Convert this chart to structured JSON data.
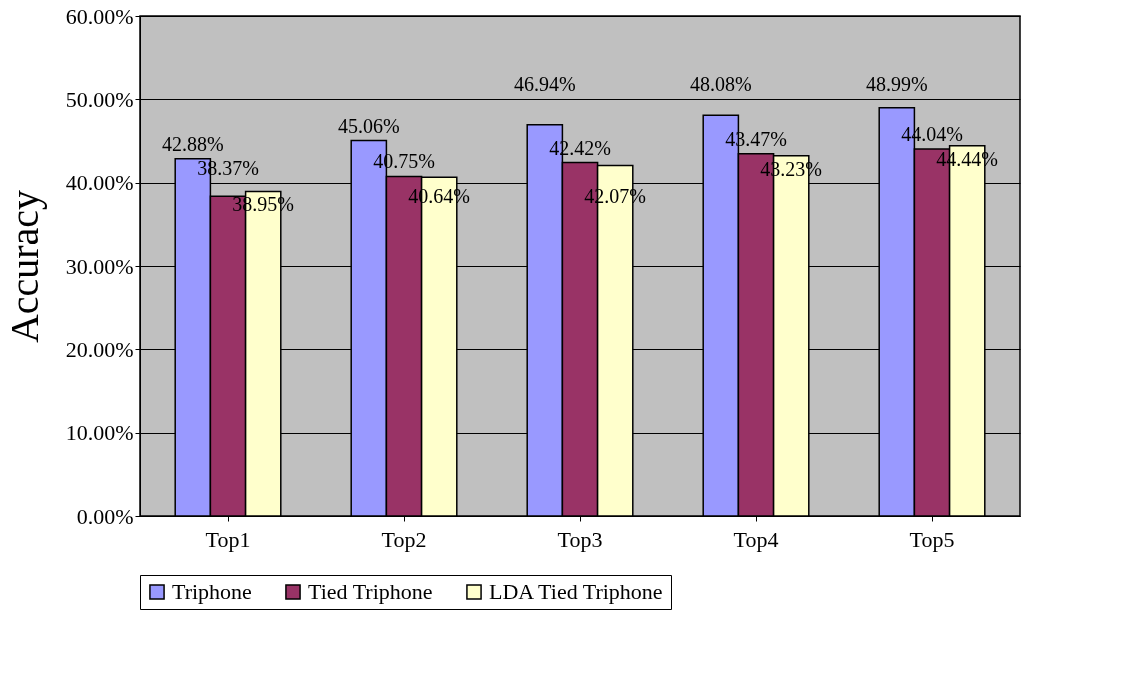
{
  "chart_data": {
    "type": "bar",
    "ylabel": "Accuracy",
    "categories": [
      "Top1",
      "Top2",
      "Top3",
      "Top4",
      "Top5"
    ],
    "series": [
      {
        "name": "Triphone",
        "color": "#9999ff",
        "values": [
          42.88,
          45.06,
          46.94,
          48.08,
          48.99
        ],
        "value_labels": [
          "42.88%",
          "45.06%",
          "46.94%",
          "48.08%",
          "48.99%"
        ]
      },
      {
        "name": "Tied Triphone",
        "color": "#993366",
        "values": [
          38.37,
          40.75,
          42.42,
          43.47,
          44.04
        ],
        "value_labels": [
          "38.37%",
          "40.75%",
          "42.42%",
          "43.47%",
          "44.04%"
        ]
      },
      {
        "name": "LDA Tied Triphone",
        "color": "#ffffcc",
        "values": [
          38.95,
          40.64,
          42.07,
          43.23,
          44.44
        ],
        "value_labels": [
          "38.95%",
          "40.64%",
          "42.07%",
          "43.23%",
          "44.44%"
        ]
      }
    ],
    "ylim": [
      0,
      60
    ],
    "yticks": [
      {
        "value": 0,
        "label": "0.00%"
      },
      {
        "value": 10,
        "label": "10.00%"
      },
      {
        "value": 20,
        "label": "20.00%"
      },
      {
        "value": 30,
        "label": "30.00%"
      },
      {
        "value": 40,
        "label": "40.00%"
      },
      {
        "value": 50,
        "label": "50.00%"
      },
      {
        "value": 60,
        "label": "60.00%"
      }
    ],
    "grid": "y",
    "legend": "bottom"
  }
}
